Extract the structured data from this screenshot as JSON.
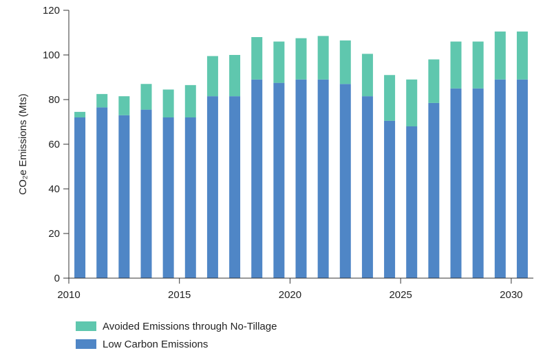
{
  "chart_data": {
    "type": "bar",
    "stacked": true,
    "x": [
      2010,
      2011,
      2012,
      2013,
      2014,
      2015,
      2016,
      2017,
      2018,
      2019,
      2020,
      2021,
      2022,
      2023,
      2024,
      2025,
      2026,
      2027,
      2028,
      2029,
      2030
    ],
    "series": [
      {
        "name": "Low Carbon Emissions",
        "color": "#4f86c6",
        "values": [
          72,
          76.5,
          73,
          75.5,
          72,
          72,
          81.5,
          81.5,
          89,
          87.5,
          89,
          89,
          87,
          81.5,
          70.5,
          68,
          78.5,
          85,
          85,
          89,
          89
        ]
      },
      {
        "name": "Avoided Emissions through No-Tillage",
        "color": "#5fc7ae",
        "values": [
          2.5,
          6,
          8.5,
          11.5,
          12.5,
          14.5,
          18,
          18.5,
          19,
          18.5,
          18.5,
          19.5,
          19.5,
          19,
          20.5,
          21,
          19.5,
          21,
          21,
          21.5,
          21.5
        ]
      }
    ],
    "ylabel": "CO₂e Emissions (Mts)",
    "xlabel": "",
    "ylim": [
      0,
      120
    ],
    "yticks": [
      0,
      20,
      40,
      60,
      80,
      100,
      120
    ],
    "xticks": [
      2010,
      2015,
      2020,
      2025,
      2030
    ],
    "xlim": [
      2010,
      2031
    ],
    "legend_position": "bottom-left",
    "legend_order": [
      "Avoided Emissions through No-Tillage",
      "Low Carbon Emissions"
    ],
    "grid": false
  }
}
